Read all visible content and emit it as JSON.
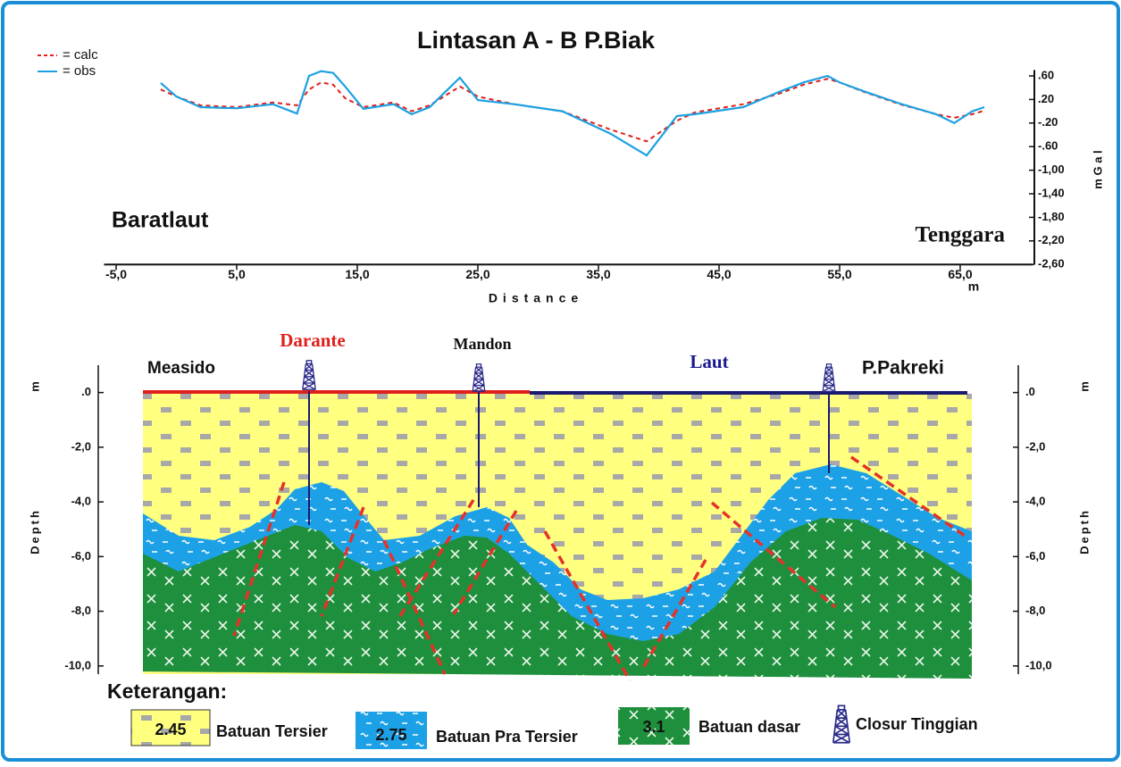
{
  "chart_data": {
    "type": "line",
    "title": "Lintasan  A - B  P.Biak",
    "x_label": "Distance",
    "x_unit": "m",
    "y_label": "m G a l",
    "annotations": [
      "Baratlaut",
      "Tenggara"
    ],
    "x": [
      -1.3,
      0,
      2,
      5,
      8,
      10,
      11,
      12,
      13,
      14,
      15.5,
      18,
      19.5,
      21,
      23.5,
      25,
      28,
      32,
      36,
      39,
      41.5,
      43,
      47,
      50,
      52,
      54,
      55,
      57,
      60,
      63,
      64.5,
      66,
      67
    ],
    "series": [
      {
        "name": "= calc",
        "color": "#e0201c",
        "line_style": "dashed",
        "values": [
          0.37,
          0.25,
          0.1,
          0.07,
          0.15,
          0.1,
          0.37,
          0.49,
          0.45,
          0.22,
          0.07,
          0.15,
          0.0,
          0.1,
          0.42,
          0.25,
          0.12,
          0.0,
          -0.31,
          -0.51,
          -0.16,
          -0.02,
          0.12,
          0.3,
          0.45,
          0.55,
          0.49,
          0.33,
          0.12,
          -0.05,
          -0.11,
          -0.05,
          0.01
        ]
      },
      {
        "name": "= obs",
        "color": "#1ba1e2",
        "line_style": "solid",
        "values": [
          0.48,
          0.25,
          0.07,
          0.05,
          0.12,
          -0.04,
          0.6,
          0.68,
          0.65,
          0.42,
          0.04,
          0.12,
          -0.05,
          0.07,
          0.57,
          0.19,
          0.12,
          0.0,
          -0.38,
          -0.75,
          -0.08,
          -0.05,
          0.07,
          0.33,
          0.49,
          0.6,
          0.49,
          0.34,
          0.13,
          -0.05,
          -0.2,
          0.0,
          0.07
        ]
      }
    ],
    "xlim": [
      -6,
      71
    ],
    "xticks": [
      {
        "value": -5,
        "label": "-5,0"
      },
      {
        "value": 5,
        "label": "5,0"
      },
      {
        "value": 15,
        "label": "15,0"
      },
      {
        "value": 25,
        "label": "25,0"
      },
      {
        "value": 35,
        "label": "35,0"
      },
      {
        "value": 45,
        "label": "45,0"
      },
      {
        "value": 55,
        "label": "55,0"
      },
      {
        "value": 65,
        "label": "65,0"
      }
    ],
    "ylim": [
      -2.6,
      0.7
    ],
    "yticks": [
      {
        "value": 0.6,
        "label": ".60"
      },
      {
        "value": 0.2,
        "label": ".20"
      },
      {
        "value": -0.2,
        "label": "-.20"
      },
      {
        "value": -0.6,
        "label": "-.60"
      },
      {
        "value": -1.0,
        "label": "-1,00"
      },
      {
        "value": -1.4,
        "label": "-1,40"
      },
      {
        "value": -1.8,
        "label": "-1,80"
      },
      {
        "value": -2.2,
        "label": "-2,20"
      },
      {
        "value": -2.6,
        "label": "-2,60"
      }
    ],
    "grid": false
  },
  "cross_section": {
    "y_label": "Depth",
    "y_unit": "m",
    "ylim": [
      -10.3,
      1.0
    ],
    "yticks": [
      {
        "value": 0,
        "label": ".0"
      },
      {
        "value": -2,
        "label": "-2,0"
      },
      {
        "value": -4,
        "label": "-4,0"
      },
      {
        "value": -6,
        "label": "-6,0"
      },
      {
        "value": -8,
        "label": "-8,0"
      },
      {
        "value": -10,
        "label": "-10,0"
      }
    ],
    "places": [
      "Measido",
      "Darante",
      "Mandon",
      "Laut",
      "P.Pakreki"
    ],
    "legend_title": "Keterangan:",
    "legend": [
      {
        "density": 2.45,
        "label": "Batuan Tersier"
      },
      {
        "density": 2.75,
        "label": "Batuan Pra Tersier"
      },
      {
        "density": 3.1,
        "label": "Batuan dasar"
      },
      {
        "label": "Closur Tinggian"
      }
    ]
  }
}
